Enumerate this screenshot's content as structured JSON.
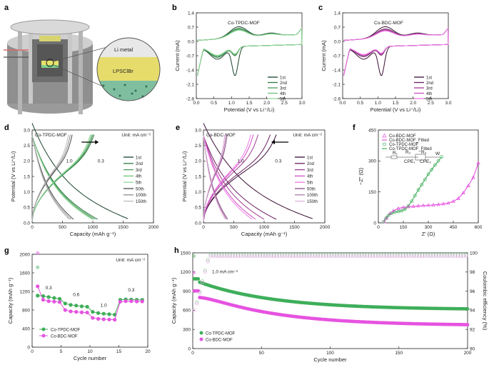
{
  "panel_labels": {
    "a": "a",
    "b": "b",
    "c": "c",
    "d": "d",
    "e": "e",
    "f": "f",
    "g": "g",
    "h": "h"
  },
  "illustration": {
    "li_metal": "Li metal",
    "electrolyte": "LPSClBr"
  },
  "colors": {
    "tpdc": [
      "#17432a",
      "#2f7a45",
      "#4c9c5c",
      "#6ec17b",
      "#93d89a",
      "#4a4a4a",
      "#8c8c8c",
      "#bdbdbd"
    ],
    "bdc": [
      "#3a0f35",
      "#6b2060",
      "#a03a92",
      "#d04dc3",
      "#f07ae8",
      "#8a4a84",
      "#b07aab",
      "#e0b5dc"
    ],
    "green": "#3fae5a",
    "magenta": "#e653e0"
  },
  "chart_data": [
    {
      "id": "b",
      "type": "line",
      "title": "Co-TPDC-MOF",
      "xlabel": "Potential (V vs Li⁺/Li)",
      "ylabel": "Current (mA)",
      "xlim": [
        0,
        3.0
      ],
      "ylim": [
        -2.8,
        1.4
      ],
      "xticks": [
        "0.0",
        "0.5",
        "1.0",
        "1.5",
        "2.0",
        "2.5",
        "3.0"
      ],
      "yticks": [
        "-2.8",
        "-2.1",
        "-1.4",
        "-0.7",
        "0.0",
        "0.7",
        "1.4"
      ],
      "series": [
        {
          "name": "1st",
          "amp": 1.0
        },
        {
          "name": "2nd",
          "amp": 0.85
        },
        {
          "name": "3rd",
          "amp": 0.78
        },
        {
          "name": "4th",
          "amp": 0.72
        },
        {
          "name": "5th",
          "amp": 0.68
        }
      ]
    },
    {
      "id": "c",
      "type": "line",
      "title": "Co-BDC-MOF",
      "xlabel": "Potential (V vs Li⁺/Li)",
      "ylabel": "Current (mA)",
      "xlim": [
        0,
        3.0
      ],
      "ylim": [
        -2.8,
        1.4
      ],
      "xticks": [
        "0.0",
        "0.5",
        "1.0",
        "1.5",
        "2.0",
        "2.5",
        "3.0"
      ],
      "yticks": [
        "-2.8",
        "-2.1",
        "-1.4",
        "-0.7",
        "0.0",
        "0.7",
        "1.4"
      ],
      "series": [
        {
          "name": "1st",
          "amp": 1.0
        },
        {
          "name": "2nd",
          "amp": 0.8
        },
        {
          "name": "3rd",
          "amp": 0.72
        },
        {
          "name": "4th",
          "amp": 0.66
        },
        {
          "name": "5th",
          "amp": 0.62
        }
      ]
    },
    {
      "id": "d",
      "type": "line",
      "title": "Co-TPDC-MOF",
      "unit": "Unit: mA cm⁻²",
      "xlabel": "Capacity (mAh g⁻¹)",
      "ylabel": "Potential (V vs Li⁺/Li)",
      "xlim": [
        0,
        2000
      ],
      "ylim": [
        0,
        3.0
      ],
      "xticks": [
        "0",
        "500",
        "1000",
        "1500",
        "2000"
      ],
      "yticks": [
        "0.0",
        "0.5",
        "1.0",
        "1.5",
        "2.0",
        "2.5",
        "3.0"
      ],
      "annotations": [
        "1.0",
        "0.3"
      ],
      "series": [
        {
          "name": "1st",
          "dis": 1580,
          "chg": 1000
        },
        {
          "name": "2nd",
          "dis": 1080,
          "chg": 1020
        },
        {
          "name": "3rd",
          "dis": 1040,
          "chg": 1000
        },
        {
          "name": "4th",
          "dis": 1010,
          "chg": 980
        },
        {
          "name": "5th",
          "dis": 990,
          "chg": 960
        },
        {
          "name": "50th",
          "dis": 680,
          "chg": 660
        },
        {
          "name": "100th",
          "dis": 640,
          "chg": 630
        },
        {
          "name": "150th",
          "dis": 610,
          "chg": 600
        }
      ]
    },
    {
      "id": "e",
      "type": "line",
      "title": "Co-BDC-MOF",
      "unit": "Unit: mA cm⁻²",
      "xlabel": "Capacity (mAh g⁻¹)",
      "ylabel": "Potential (V vs Li⁺/Li)",
      "xlim": [
        0,
        2000
      ],
      "ylim": [
        0,
        3.0
      ],
      "xticks": [
        "0",
        "500",
        "1000",
        "1500",
        "2000"
      ],
      "yticks": [
        "0.0",
        "0.5",
        "1.0",
        "1.5",
        "2.0",
        "2.5",
        "3.0"
      ],
      "annotations": [
        "1.0",
        "0.3"
      ],
      "series": [
        {
          "name": "1st",
          "dis": 1800,
          "chg": 1200
        },
        {
          "name": "2nd",
          "dis": 1200,
          "chg": 1100
        },
        {
          "name": "3rd",
          "dis": 1000,
          "chg": 900
        },
        {
          "name": "4th",
          "dis": 860,
          "chg": 820
        },
        {
          "name": "5th",
          "dis": 800,
          "chg": 780
        },
        {
          "name": "50th",
          "dis": 400,
          "chg": 390
        },
        {
          "name": "100th",
          "dis": 380,
          "chg": 370
        },
        {
          "name": "150th",
          "dis": 360,
          "chg": 350
        }
      ]
    },
    {
      "id": "f",
      "type": "scatter",
      "xlabel": "Z′ (Ω)",
      "ylabel": "−Z″ (Ω)",
      "xlim": [
        0,
        600
      ],
      "ylim": [
        0,
        450
      ],
      "xticks": [
        "0",
        "150",
        "300",
        "450",
        "600"
      ],
      "yticks": [
        "0",
        "150",
        "300",
        "450"
      ],
      "series": [
        {
          "name": "Co-BDC-MOF",
          "points": [
            [
              35,
              5
            ],
            [
              50,
              25
            ],
            [
              70,
              45
            ],
            [
              90,
              58
            ],
            [
              120,
              70
            ],
            [
              150,
              75
            ],
            [
              180,
              78
            ],
            [
              210,
              80
            ],
            [
              240,
              82
            ],
            [
              270,
              84
            ],
            [
              300,
              85
            ],
            [
              330,
              87
            ],
            [
              360,
              89
            ],
            [
              390,
              92
            ],
            [
              420,
              96
            ],
            [
              450,
              104
            ],
            [
              480,
              118
            ],
            [
              510,
              145
            ],
            [
              540,
              180
            ],
            [
              570,
              220
            ],
            [
              600,
              290
            ]
          ]
        },
        {
          "name": "Co-BDC-MOF_Fitted"
        },
        {
          "name": "Co-TPDC-MOF",
          "points": [
            [
              30,
              5
            ],
            [
              45,
              22
            ],
            [
              60,
              36
            ],
            [
              80,
              46
            ],
            [
              100,
              52
            ],
            [
              120,
              55
            ],
            [
              140,
              58
            ],
            [
              160,
              66
            ],
            [
              180,
              82
            ],
            [
              200,
              105
            ],
            [
              220,
              132
            ],
            [
              240,
              160
            ],
            [
              260,
              185
            ],
            [
              280,
              210
            ],
            [
              300,
              236
            ],
            [
              320,
              258
            ],
            [
              340,
              280
            ],
            [
              360,
              300
            ],
            [
              380,
              320
            ]
          ]
        },
        {
          "name": "Co-TPDC-MOF_Fitted"
        }
      ],
      "circuit_labels": [
        "R₁",
        "R₂",
        "R₃",
        "CPE₁",
        "CPE₂",
        "W"
      ]
    },
    {
      "id": "g",
      "type": "scatter",
      "xlabel": "Cycle number",
      "ylabel": "Capacity (mAh g⁻¹)",
      "unit": "Unit: mA cm⁻²",
      "xlim": [
        0,
        21
      ],
      "ylim": [
        0,
        2000
      ],
      "xticks": [
        "0",
        "5",
        "10",
        "15",
        "20"
      ],
      "yticks": [
        "0",
        "400",
        "800",
        "1200",
        "1600",
        "2000"
      ],
      "rate_labels": [
        "0.3",
        "0.6",
        "1.0",
        "0.3"
      ],
      "series": [
        {
          "name": "Co-TPDC-MOF",
          "values": [
            1110,
            1100,
            1080,
            1060,
            1040,
            940,
            910,
            895,
            880,
            870,
            760,
            735,
            720,
            710,
            700,
            1020,
            1030,
            1025,
            1020,
            1020
          ]
        },
        {
          "name": "Co-BDC-MOF",
          "values": [
            1310,
            1020,
            990,
            980,
            970,
            800,
            770,
            760,
            750,
            745,
            630,
            610,
            600,
            595,
            590,
            980,
            990,
            990,
            985,
            985
          ]
        }
      ],
      "discharge_first": [
        {
          "name": "Co-TPDC-MOF",
          "value": 1720
        },
        {
          "name": "Co-BDC-MOF",
          "value": 2030
        }
      ]
    },
    {
      "id": "h",
      "type": "scatter",
      "xlabel": "Cycle number",
      "ylabel": "Capacity (mAh g⁻¹)",
      "y2label": "Coulombic efficiency (%)",
      "annotation": "1.0 mA cm⁻²",
      "xlim": [
        0,
        200
      ],
      "ylim": [
        0,
        1500
      ],
      "y2lim": [
        90,
        100
      ],
      "xticks": [
        "0",
        "50",
        "100",
        "150",
        "200"
      ],
      "yticks": [
        "0",
        "300",
        "600",
        "900",
        "1200",
        "1500"
      ],
      "y2ticks": [
        "90",
        "92",
        "94",
        "96",
        "98",
        "100"
      ],
      "series": [
        {
          "name": "Co-TPDC-MOF",
          "start": 1040,
          "end": 610
        },
        {
          "name": "Co-BDC-MOF",
          "start": 860,
          "end": 360
        }
      ]
    }
  ]
}
